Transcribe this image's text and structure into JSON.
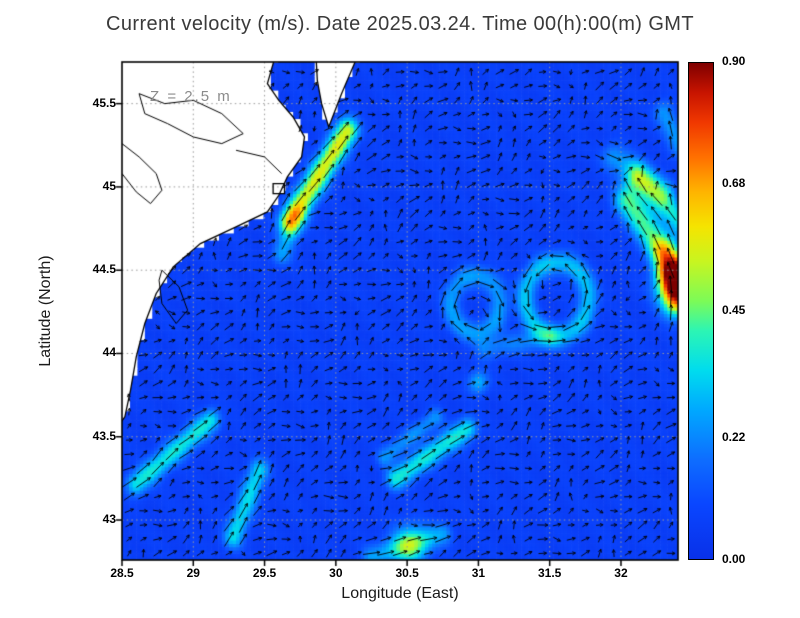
{
  "title": "Current velocity (m/s). Date 2025.03.24. Time 00(h):00(m) GMT",
  "annotation": "Z = 2.5 m",
  "axes": {
    "x": {
      "label": "Longitude (East)",
      "tick_labels": [
        "28.5",
        "29",
        "29.5",
        "30",
        "30.5",
        "31",
        "31.5",
        "32"
      ],
      "tick_values": [
        28.5,
        29,
        29.5,
        30,
        30.5,
        31,
        31.5,
        32
      ]
    },
    "y": {
      "label": "Latitude (North)",
      "tick_labels": [
        "43",
        "43.5",
        "44",
        "44.5",
        "45",
        "45.5"
      ],
      "tick_values": [
        43,
        43.5,
        44,
        44.5,
        45,
        45.5
      ]
    }
  },
  "colorbar": {
    "tick_labels": [
      "0.00",
      "0.22",
      "0.45",
      "0.68",
      "0.90"
    ],
    "tick_values": [
      0,
      0.22,
      0.45,
      0.68,
      0.9
    ],
    "min": 0,
    "max": 0.9
  },
  "colors": {
    "sea_low": "#0a3cf0",
    "land": "#ffffff",
    "coastline": "#000000",
    "grid": "#9a9a9a",
    "arrow": "#000000",
    "frame": "#000000",
    "title_text": "#3a3a3a",
    "annotation_text": "#8b8b8b"
  },
  "chart_data": {
    "type": "heatmap",
    "subtype": "current-velocity-field-with-quiver",
    "title": "Current velocity (m/s). Date 2025.03.24. Time 00(h):00(m) GMT",
    "xlabel": "Longitude (East)",
    "ylabel": "Latitude (North)",
    "xlim": [
      28.5,
      32.4
    ],
    "ylim": [
      42.76,
      45.75
    ],
    "zlim": [
      0,
      0.9
    ],
    "depth_label": "Z = 2.5 m",
    "grid": "dotted",
    "background_speed": 0.07,
    "colormap_stops": [
      [
        0,
        "#0931e8"
      ],
      [
        0.11,
        "#0a46ff"
      ],
      [
        0.2,
        "#0e6dff"
      ],
      [
        0.3,
        "#00a8ff"
      ],
      [
        0.38,
        "#00dcee"
      ],
      [
        0.46,
        "#2cf5b4"
      ],
      [
        0.52,
        "#7cfb57"
      ],
      [
        0.6,
        "#c8f520"
      ],
      [
        0.67,
        "#f5e400"
      ],
      [
        0.74,
        "#ffb400"
      ],
      [
        0.81,
        "#ff7000"
      ],
      [
        0.88,
        "#f03800"
      ],
      [
        0.94,
        "#c81400"
      ],
      [
        1,
        "#7f0000"
      ]
    ],
    "features": [
      {
        "kind": "streak",
        "from": [
          29.68,
          44.8
        ],
        "to": [
          30.08,
          45.34
        ],
        "sigma": 0.055,
        "amp": 0.5
      },
      {
        "kind": "streak",
        "from": [
          29.62,
          44.6
        ],
        "to": [
          29.72,
          44.82
        ],
        "sigma": 0.05,
        "amp": 0.18
      },
      {
        "kind": "blob",
        "center": [
          32.42,
          44.42
        ],
        "sigma": 0.1,
        "amp": 0.88
      },
      {
        "kind": "streak",
        "from": [
          32.38,
          44.3
        ],
        "to": [
          32.3,
          44.62
        ],
        "sigma": 0.06,
        "amp": 0.25
      },
      {
        "kind": "streak",
        "from": [
          32.35,
          44.55
        ],
        "to": [
          32.05,
          44.92
        ],
        "sigma": 0.07,
        "amp": 0.35
      },
      {
        "kind": "streak",
        "from": [
          32.42,
          44.8
        ],
        "to": [
          32.12,
          45.06
        ],
        "sigma": 0.06,
        "amp": 0.28
      },
      {
        "kind": "streak",
        "from": [
          32.42,
          45.25
        ],
        "to": [
          32.3,
          45.45
        ],
        "sigma": 0.05,
        "amp": 0.18
      },
      {
        "kind": "streak",
        "from": [
          28.6,
          43.22
        ],
        "to": [
          29.12,
          43.6
        ],
        "sigma": 0.05,
        "amp": 0.3
      },
      {
        "kind": "streak",
        "from": [
          29.28,
          42.9
        ],
        "to": [
          29.46,
          43.3
        ],
        "sigma": 0.05,
        "amp": 0.27
      },
      {
        "kind": "streak",
        "from": [
          30.42,
          43.25
        ],
        "to": [
          30.92,
          43.55
        ],
        "sigma": 0.05,
        "amp": 0.3
      },
      {
        "kind": "streak",
        "from": [
          30.34,
          43.38
        ],
        "to": [
          30.7,
          43.62
        ],
        "sigma": 0.04,
        "amp": 0.16
      },
      {
        "kind": "blob",
        "center": [
          30.52,
          42.85
        ],
        "sigma": 0.09,
        "amp": 0.3
      },
      {
        "kind": "streak",
        "from": [
          30.25,
          42.78
        ],
        "to": [
          30.75,
          42.92
        ],
        "sigma": 0.05,
        "amp": 0.18
      },
      {
        "kind": "eddy",
        "center": [
          31.55,
          44.33
        ],
        "radius": 0.22,
        "sigma": 0.05,
        "amp": 0.24,
        "spin": 1
      },
      {
        "kind": "eddy",
        "center": [
          30.98,
          44.3
        ],
        "radius": 0.17,
        "sigma": 0.05,
        "amp": 0.18,
        "spin": -1
      },
      {
        "kind": "blob",
        "center": [
          31.0,
          43.83
        ],
        "sigma": 0.05,
        "amp": 0.22
      },
      {
        "kind": "streak",
        "from": [
          31.05,
          44.03
        ],
        "to": [
          31.5,
          44.1
        ],
        "sigma": 0.05,
        "amp": 0.13
      },
      {
        "kind": "streak",
        "from": [
          31.95,
          45.18
        ],
        "to": [
          32.3,
          44.98
        ],
        "sigma": 0.06,
        "amp": 0.18
      }
    ],
    "vector_grid": {
      "lon_start": 28.55,
      "lon_step": 0.1,
      "cols": 39,
      "lat_start": 42.8,
      "lat_step": 0.085,
      "rows": 35
    },
    "base_flow": {
      "u": 0.045,
      "v": 0.028
    },
    "land_polygons": [
      [
        [
          28.44,
          45.8
        ],
        [
          29.58,
          45.8
        ],
        [
          29.52,
          45.62
        ],
        [
          29.6,
          45.52
        ],
        [
          29.7,
          45.42
        ],
        [
          29.78,
          45.3
        ],
        [
          29.76,
          45.18
        ],
        [
          29.66,
          45.06
        ],
        [
          29.6,
          44.95
        ],
        [
          29.52,
          44.85
        ],
        [
          29.3,
          44.76
        ],
        [
          29.05,
          44.66
        ],
        [
          28.86,
          44.52
        ],
        [
          28.74,
          44.36
        ],
        [
          28.66,
          44.18
        ],
        [
          28.6,
          43.98
        ],
        [
          28.56,
          43.78
        ],
        [
          28.52,
          43.62
        ],
        [
          28.44,
          43.52
        ]
      ],
      [
        [
          29.86,
          45.8
        ],
        [
          30.16,
          45.8
        ],
        [
          30.04,
          45.56
        ],
        [
          29.95,
          45.36
        ],
        [
          29.9,
          45.5
        ],
        [
          29.87,
          45.64
        ]
      ],
      [
        [
          29.56,
          45.02
        ],
        [
          29.64,
          45.02
        ],
        [
          29.64,
          44.96
        ],
        [
          29.56,
          44.96
        ]
      ]
    ],
    "coast_inner_lines": [
      [
        [
          28.62,
          45.56
        ],
        [
          28.8,
          45.5
        ],
        [
          29.0,
          45.52
        ],
        [
          29.2,
          45.44
        ],
        [
          29.35,
          45.32
        ],
        [
          29.2,
          45.26
        ],
        [
          29.0,
          45.3
        ],
        [
          28.82,
          45.38
        ],
        [
          28.66,
          45.44
        ],
        [
          28.62,
          45.56
        ]
      ],
      [
        [
          29.3,
          45.22
        ],
        [
          29.5,
          45.18
        ],
        [
          29.62,
          45.08
        ]
      ],
      [
        [
          28.78,
          44.5
        ],
        [
          28.9,
          44.4
        ],
        [
          28.96,
          44.26
        ],
        [
          28.88,
          44.18
        ],
        [
          28.78,
          44.3
        ],
        [
          28.76,
          44.44
        ],
        [
          28.78,
          44.5
        ]
      ],
      [
        [
          28.5,
          45.26
        ],
        [
          28.62,
          45.18
        ],
        [
          28.74,
          45.08
        ],
        [
          28.78,
          44.98
        ],
        [
          28.7,
          44.9
        ],
        [
          28.6,
          44.97
        ],
        [
          28.5,
          45.08
        ]
      ]
    ]
  }
}
